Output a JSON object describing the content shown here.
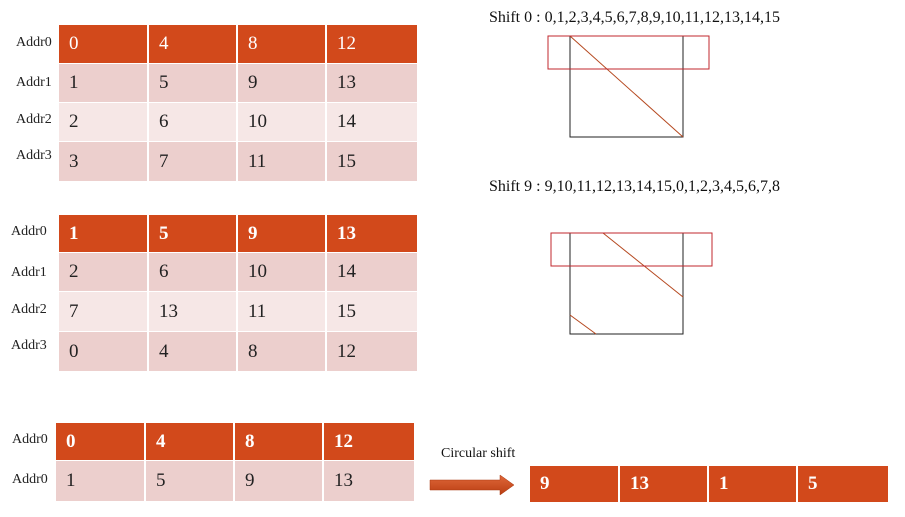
{
  "table1": {
    "rows": [
      {
        "addr": "Addr0",
        "cells": [
          "0",
          "4",
          "8",
          "12"
        ]
      },
      {
        "addr": "Addr1",
        "cells": [
          "1",
          "5",
          "9",
          "13"
        ]
      },
      {
        "addr": "Addr2",
        "cells": [
          "2",
          "6",
          "10",
          "14"
        ]
      },
      {
        "addr": "Addr3",
        "cells": [
          "3",
          "7",
          "11",
          "15"
        ]
      }
    ]
  },
  "table2": {
    "rows": [
      {
        "addr": "Addr0",
        "cells": [
          "1",
          "5",
          "9",
          "13"
        ]
      },
      {
        "addr": "Addr1",
        "cells": [
          "2",
          "6",
          "10",
          "14"
        ]
      },
      {
        "addr": "Addr2",
        "cells": [
          "7",
          "13",
          "11",
          "15"
        ]
      },
      {
        "addr": "Addr3",
        "cells": [
          "0",
          "4",
          "8",
          "12"
        ]
      }
    ]
  },
  "table3": {
    "rows": [
      {
        "addr": "Addr0",
        "cells": [
          "0",
          "4",
          "8",
          "12"
        ]
      },
      {
        "addr": "Addr0",
        "cells": [
          "1",
          "5",
          "9",
          "13"
        ]
      }
    ]
  },
  "shift0_caption": "Shift 0 : 0,1,2,3,4,5,6,7,8,9,10,11,12,13,14,15",
  "shift9_caption": "Shift 9 : 9,10,11,12,13,14,15,0,1,2,3,4,5,6,7,8",
  "circular_shift_label": "Circular shift",
  "result_row": [
    "9",
    "13",
    "1",
    "5"
  ],
  "colors": {
    "header": "#d2491b",
    "row_dark": "#eccfcd",
    "row_light": "#f6e7e6",
    "outline": "#c0272d",
    "diagonal": "#b5481f"
  }
}
